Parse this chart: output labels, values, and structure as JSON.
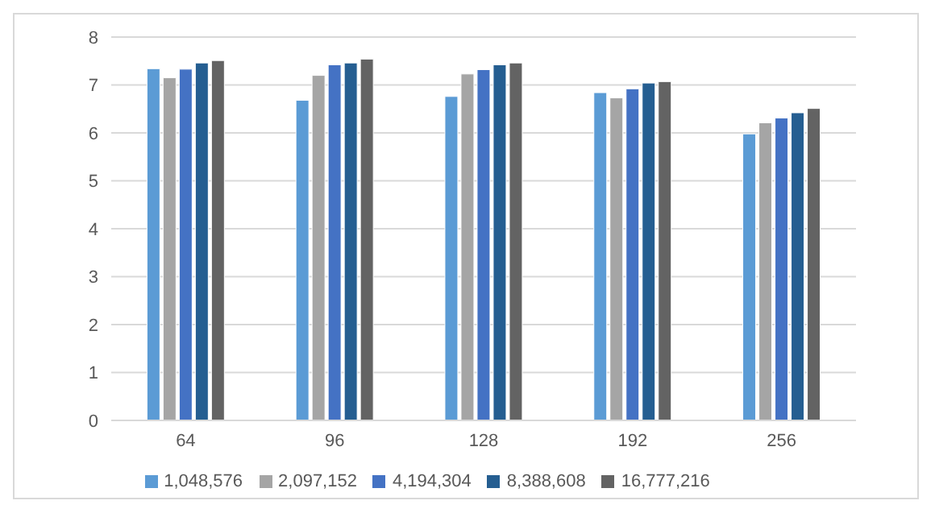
{
  "chart_data": {
    "type": "bar",
    "categories": [
      "64",
      "96",
      "128",
      "192",
      "256"
    ],
    "series": [
      {
        "name": "1,048,576",
        "color": "#5b9bd5",
        "values": [
          7.34,
          6.68,
          6.76,
          6.84,
          5.98
        ]
      },
      {
        "name": "2,097,152",
        "color": "#a5a5a5",
        "values": [
          7.15,
          7.2,
          7.23,
          6.73,
          6.21
        ]
      },
      {
        "name": "4,194,304",
        "color": "#4472c4",
        "values": [
          7.33,
          7.42,
          7.32,
          6.92,
          6.31
        ]
      },
      {
        "name": "8,388,608",
        "color": "#255e91",
        "values": [
          7.46,
          7.46,
          7.42,
          7.04,
          6.42
        ]
      },
      {
        "name": "16,777,216",
        "color": "#636363",
        "values": [
          7.51,
          7.54,
          7.46,
          7.07,
          6.51
        ]
      }
    ],
    "ylim": [
      0,
      8
    ],
    "yticks": [
      0,
      1,
      2,
      3,
      4,
      5,
      6,
      7,
      8
    ],
    "grid": "y",
    "legend": "bottom"
  }
}
